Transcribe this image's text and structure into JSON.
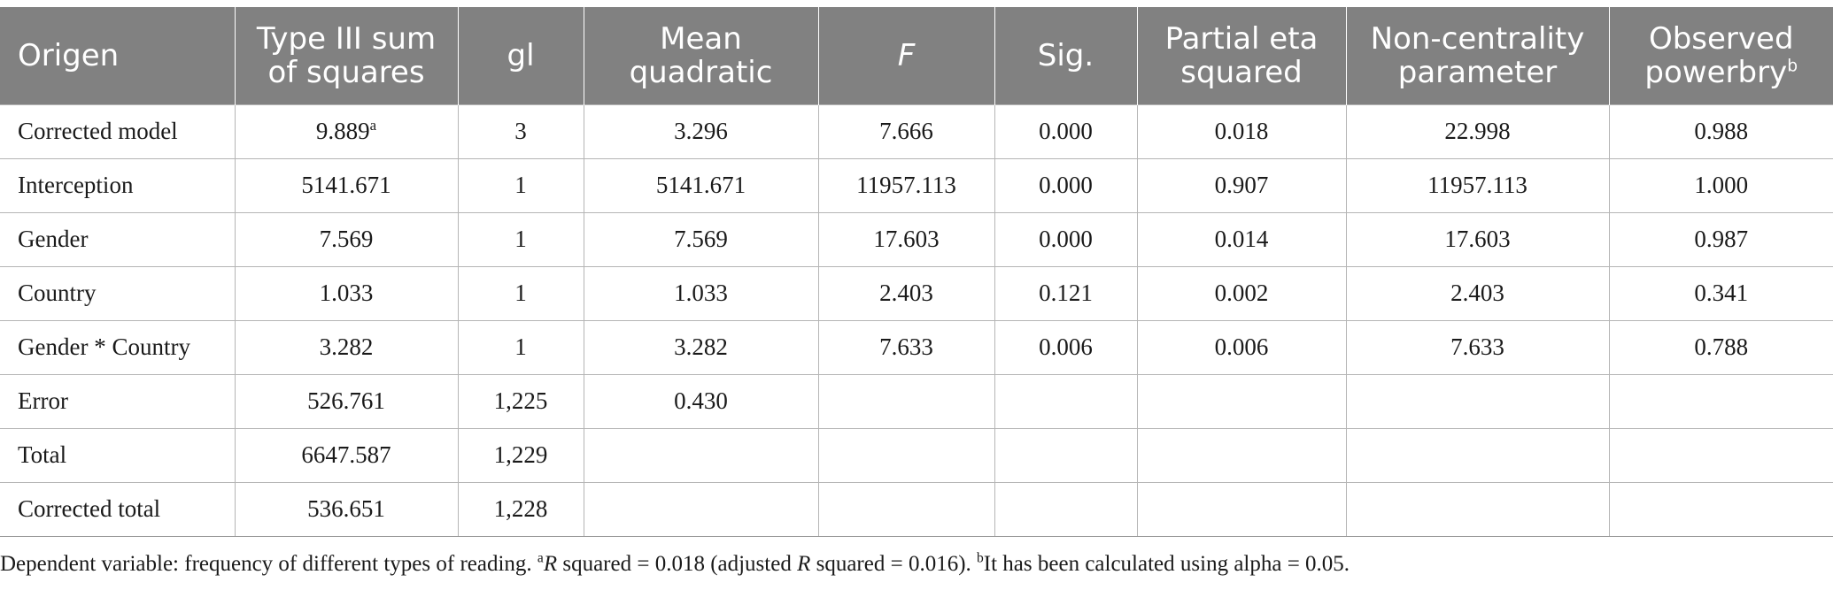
{
  "headers": {
    "origen": "Origen",
    "ss_1": "Type III sum",
    "ss_2": "of squares",
    "gl": "gl",
    "mq_1": "Mean",
    "mq_2": "quadratic",
    "f": "F",
    "sig": "Sig.",
    "pes_1": "Partial eta",
    "pes_2": "squared",
    "nc_1": "Non-centrality",
    "nc_2": "parameter",
    "op_1": "Observed",
    "op_2": "powerbry",
    "op_sup": "b"
  },
  "rows": [
    {
      "source": "Corrected model",
      "ss": "9.889",
      "ss_sup": "a",
      "df": "3",
      "mq": "3.296",
      "f": "7.666",
      "sig": "0.000",
      "pes": "0.018",
      "nc": "22.998",
      "op": "0.988"
    },
    {
      "source": "Interception",
      "ss": "5141.671",
      "ss_sup": "",
      "df": "1",
      "mq": "5141.671",
      "f": "11957.113",
      "sig": "0.000",
      "pes": "0.907",
      "nc": "11957.113",
      "op": "1.000"
    },
    {
      "source": "Gender",
      "ss": "7.569",
      "ss_sup": "",
      "df": "1",
      "mq": "7.569",
      "f": "17.603",
      "sig": "0.000",
      "pes": "0.014",
      "nc": "17.603",
      "op": "0.987"
    },
    {
      "source": "Country",
      "ss": "1.033",
      "ss_sup": "",
      "df": "1",
      "mq": "1.033",
      "f": "2.403",
      "sig": "0.121",
      "pes": "0.002",
      "nc": "2.403",
      "op": "0.341"
    },
    {
      "source": "Gender * Country",
      "ss": "3.282",
      "ss_sup": "",
      "df": "1",
      "mq": "3.282",
      "f": "7.633",
      "sig": "0.006",
      "pes": "0.006",
      "nc": "7.633",
      "op": "0.788"
    },
    {
      "source": "Error",
      "ss": "526.761",
      "ss_sup": "",
      "df": "1,225",
      "mq": "0.430",
      "f": "",
      "sig": "",
      "pes": "",
      "nc": "",
      "op": ""
    },
    {
      "source": "Total",
      "ss": "6647.587",
      "ss_sup": "",
      "df": "1,229",
      "mq": "",
      "f": "",
      "sig": "",
      "pes": "",
      "nc": "",
      "op": ""
    },
    {
      "source": "Corrected total",
      "ss": "536.651",
      "ss_sup": "",
      "df": "1,228",
      "mq": "",
      "f": "",
      "sig": "",
      "pes": "",
      "nc": "",
      "op": ""
    }
  ],
  "footnote": {
    "text1": "Dependent variable: frequency of different types of reading. ",
    "sup_a": "a",
    "r1": "R",
    "text2": " squared = 0.018 (adjusted ",
    "r2": "R",
    "text3": " squared = 0.016). ",
    "sup_b": "b",
    "text4": "It has been calculated using alpha = 0.05."
  }
}
